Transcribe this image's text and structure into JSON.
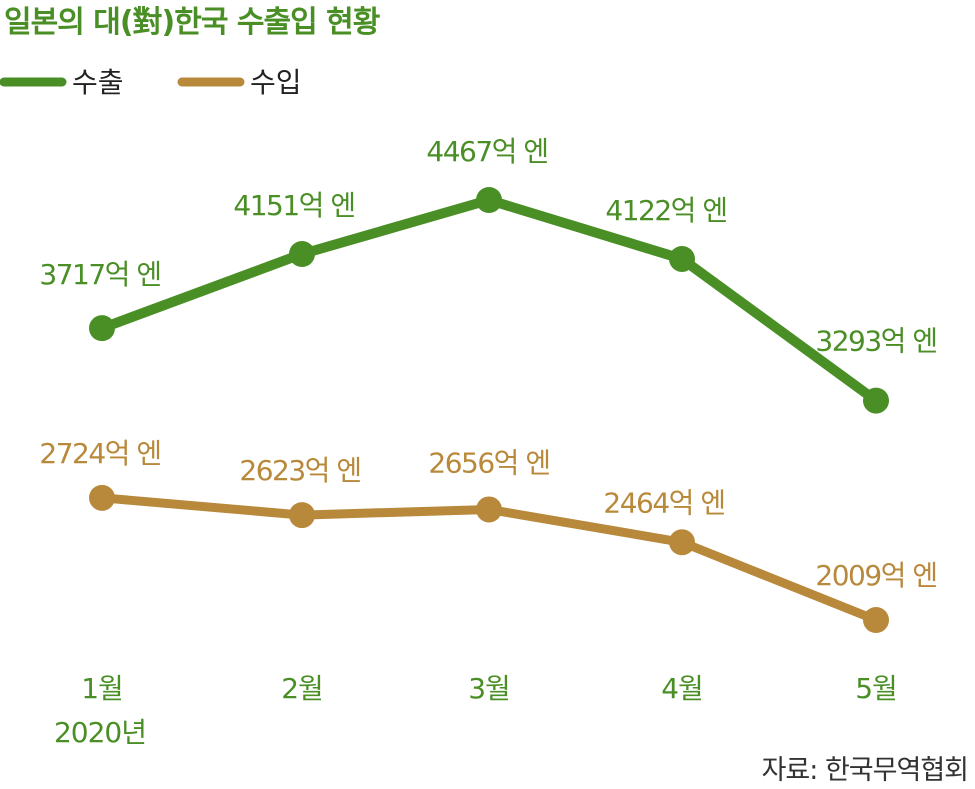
{
  "chart_data": {
    "type": "line",
    "title": "일본의 대(對)한국 수출입 현황",
    "categories": [
      "1월",
      "2월",
      "3월",
      "4월",
      "5월"
    ],
    "year_label": "2020년",
    "unit": "억 엔",
    "series": [
      {
        "name": "수출",
        "color": "#4a8f26",
        "values": [
          3717,
          4151,
          4467,
          4122,
          3293
        ],
        "labels": [
          "3717억 엔",
          "4151억 엔",
          "4467억 엔",
          "4122억 엔",
          "3293억 엔"
        ]
      },
      {
        "name": "수입",
        "color": "#b8893a",
        "values": [
          2724,
          2623,
          2656,
          2464,
          2009
        ],
        "labels": [
          "2724억 엔",
          "2623억 엔",
          "2656억 엔",
          "2464억 엔",
          "2009억 엔"
        ]
      }
    ],
    "legend_position": "top-left",
    "grid": false,
    "source": "자료: 한국무역협회",
    "colors": {
      "title": "#4a8f26",
      "month_labels": "#4a8f26"
    }
  }
}
